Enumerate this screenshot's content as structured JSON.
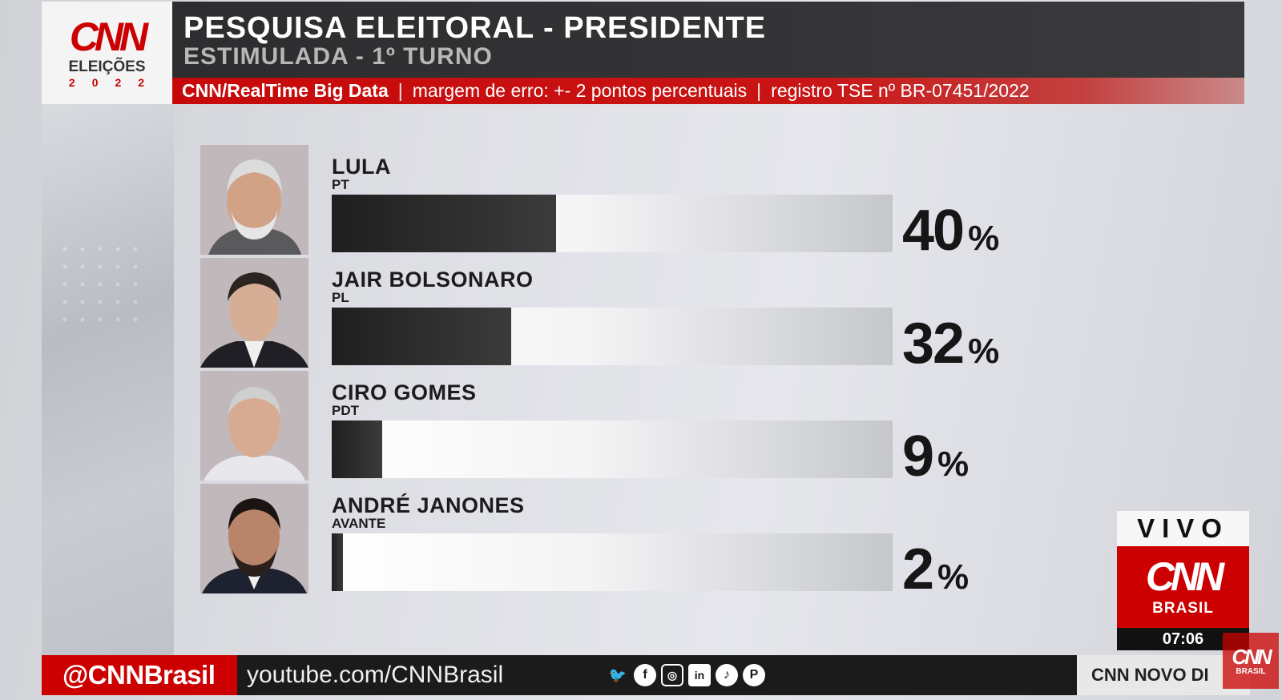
{
  "header": {
    "logo_brand": "CNN",
    "logo_label": "ELEIÇÕES",
    "logo_year": "2022",
    "title": "PESQUISA ELEITORAL - PRESIDENTE",
    "subtitle": "ESTIMULADA - 1º TURNO",
    "source": "CNN/RealTime Big Data",
    "separator": "|",
    "margin": "margem de erro: +- 2 pontos percentuais",
    "registry": "registro TSE nº BR-07451/2022"
  },
  "chart_data": {
    "type": "bar",
    "title": "PESQUISA ELEITORAL - PRESIDENTE",
    "subtitle": "ESTIMULADA - 1º TURNO",
    "categories": [
      "LULA",
      "JAIR BOLSONARO",
      "CIRO GOMES",
      "ANDRÉ JANONES"
    ],
    "values": [
      40,
      32,
      9,
      2
    ],
    "ylim": [
      0,
      100
    ],
    "unit": "%",
    "candidates": [
      {
        "name": "LULA",
        "party": "PT",
        "value": 40,
        "display": "40"
      },
      {
        "name": "JAIR BOLSONARO",
        "party": "PL",
        "value": 32,
        "display": "32"
      },
      {
        "name": "CIRO GOMES",
        "party": "PDT",
        "value": 9,
        "display": "9"
      },
      {
        "name": "ANDRÉ JANONES",
        "party": "AVANTE",
        "value": 2,
        "display": "2"
      }
    ]
  },
  "live": {
    "label": "VIVO",
    "brand": "CNN",
    "brand_sub": "BRASIL",
    "time": "07:06"
  },
  "footer": {
    "handle": "@CNNBrasil",
    "url": "youtube.com/CNNBrasil",
    "social_icons": [
      "twitter-icon",
      "facebook-icon",
      "instagram-icon",
      "linkedin-icon",
      "tiktok-icon",
      "pinterest-icon"
    ],
    "ticker": "CNN NOVO DI"
  },
  "colors": {
    "brand_red": "#cc0000",
    "title_bar": "#2d2d30",
    "bar_fill": "#2a2a2a",
    "bar_track": "#f0f0f0"
  }
}
